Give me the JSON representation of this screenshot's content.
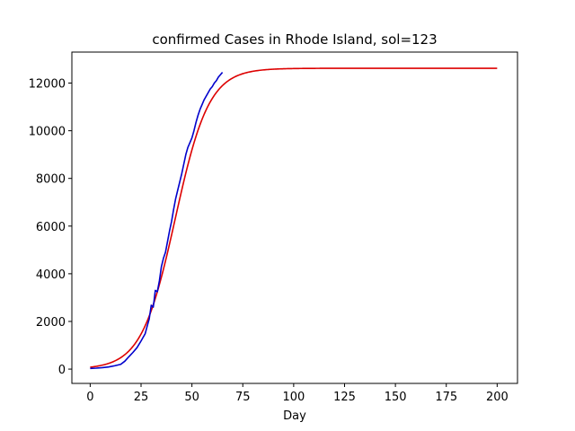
{
  "chart_data": {
    "type": "line",
    "title": "confirmed Cases in Rhode Island, sol=123",
    "xlabel": "Day",
    "ylabel": "",
    "xlim": [
      -9,
      210
    ],
    "ylim": [
      -600,
      13300
    ],
    "xticks": [
      0,
      25,
      50,
      75,
      100,
      125,
      150,
      175,
      200
    ],
    "yticks": [
      0,
      2000,
      4000,
      6000,
      8000,
      10000,
      12000
    ],
    "grid": false,
    "legend": "none",
    "series": [
      {
        "color": "#dd0000",
        "model": "logistic",
        "capacity": 12620,
        "growth_rate": 0.1205,
        "midpoint_day": 41.8,
        "x_range": [
          0,
          200
        ]
      },
      {
        "color": "#0000cc",
        "x": [
          0,
          3,
          6,
          9,
          12,
          15,
          17,
          19,
          21,
          23,
          25,
          27,
          28,
          29,
          30,
          31,
          32,
          33,
          34,
          35,
          36,
          37,
          38,
          39,
          40,
          41,
          42,
          43,
          44,
          45,
          46,
          47,
          48,
          49,
          50,
          51,
          52,
          53,
          54,
          55,
          56,
          57,
          58,
          59,
          60,
          61,
          62,
          63,
          64,
          65
        ],
        "y": [
          30,
          40,
          60,
          90,
          140,
          200,
          330,
          520,
          700,
          900,
          1180,
          1480,
          1800,
          2100,
          2680,
          2600,
          3300,
          3250,
          3700,
          4300,
          4650,
          4900,
          5350,
          5800,
          6200,
          6700,
          7150,
          7500,
          7850,
          8200,
          8600,
          9000,
          9300,
          9500,
          9700,
          10000,
          10350,
          10650,
          10900,
          11100,
          11300,
          11450,
          11600,
          11750,
          11850,
          12000,
          12100,
          12250,
          12350,
          12450
        ]
      }
    ]
  }
}
